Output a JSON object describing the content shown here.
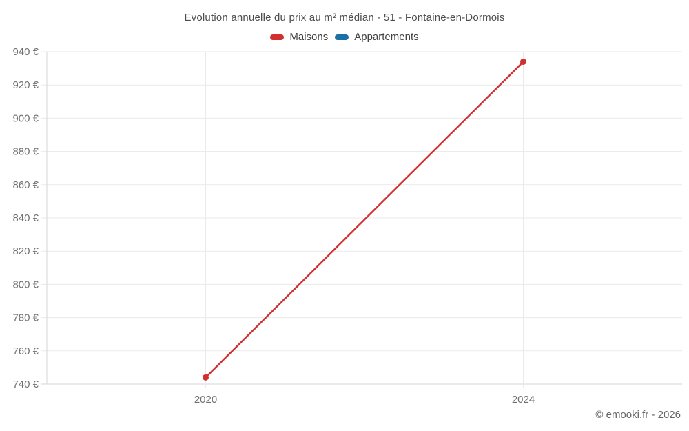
{
  "chart_data": {
    "type": "line",
    "title": "Evolution annuelle du prix au m² médian - 51 - Fontaine-en-Dormois",
    "categories": [
      "2020",
      "2024"
    ],
    "series": [
      {
        "name": "Maisons",
        "color": "#d32f2f",
        "values": [
          744,
          934
        ]
      },
      {
        "name": "Appartements",
        "color": "#1c70a8",
        "values": []
      }
    ],
    "xlabel": "",
    "ylabel": "",
    "ylim": [
      740,
      940
    ],
    "ytick_step": 20,
    "ytick_suffix": " €",
    "grid": true,
    "legend_position": "top",
    "colors": {
      "gridline": "#eaeaea",
      "axis_line": "#d5d5d5",
      "tick_label": "#707070"
    }
  },
  "footer": {
    "copyright": "© emooki.fr - 2026"
  }
}
